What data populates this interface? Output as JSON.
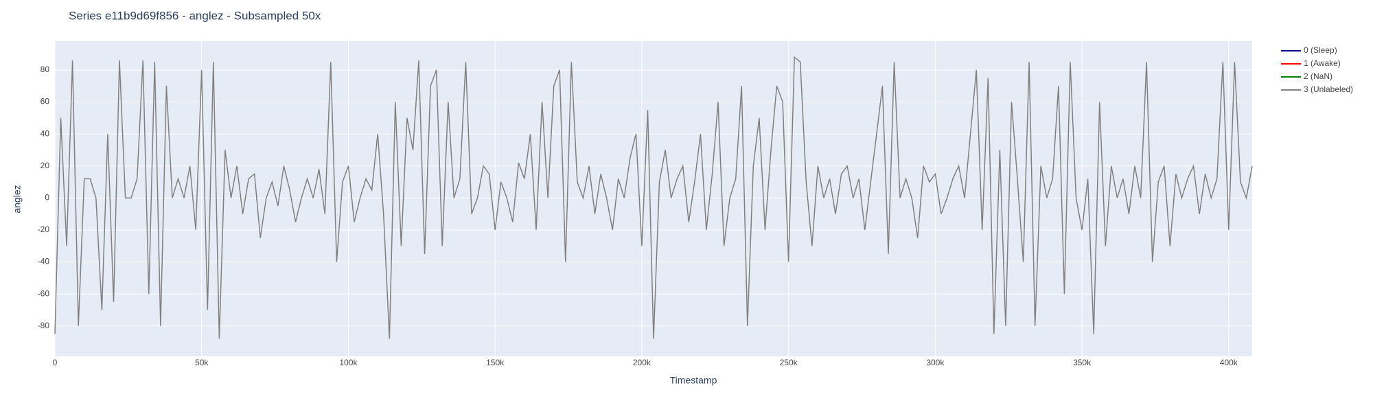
{
  "chart_data": {
    "type": "line",
    "title": "Series e11b9d69f856 - anglez - Subsampled 50x",
    "x_label": "Timestamp",
    "y_label": "anglez",
    "xlim": [
      0,
      408000
    ],
    "ylim": [
      -99,
      98
    ],
    "xticks": [
      0,
      {
        "value": 50000,
        "label": "50k"
      },
      {
        "value": 100000,
        "label": "100k"
      },
      {
        "value": 150000,
        "label": "150k"
      },
      {
        "value": 200000,
        "label": "200k"
      },
      {
        "value": 250000,
        "label": "250k"
      },
      {
        "value": 300000,
        "label": "300k"
      },
      {
        "value": 350000,
        "label": "350k"
      },
      {
        "value": 400000,
        "label": "400k"
      }
    ],
    "yticks": [
      -80,
      -60,
      -40,
      -20,
      0,
      20,
      40,
      60,
      80
    ],
    "grid": true,
    "legend": "right",
    "series": [
      {
        "name": "0 (Sleep)",
        "color": "#00008b",
        "x": [],
        "values": []
      },
      {
        "name": "1 (Awake)",
        "color": "#ff0000",
        "x": [],
        "values": []
      },
      {
        "name": "2 (NaN)",
        "color": "#008000",
        "x": [],
        "values": []
      },
      {
        "name": "3 (Unlabeled)",
        "color": "#808080",
        "x": [
          0,
          2000,
          4000,
          6000,
          8000,
          10000,
          12000,
          14000,
          16000,
          18000,
          20000,
          22000,
          24000,
          26000,
          28000,
          30000,
          32000,
          34000,
          36000,
          38000,
          40000,
          42000,
          44000,
          46000,
          48000,
          50000,
          52000,
          54000,
          56000,
          58000,
          60000,
          62000,
          64000,
          66000,
          68000,
          70000,
          72000,
          74000,
          76000,
          78000,
          80000,
          82000,
          84000,
          86000,
          88000,
          90000,
          92000,
          94000,
          96000,
          98000,
          100000,
          102000,
          104000,
          106000,
          108000,
          110000,
          112000,
          114000,
          116000,
          118000,
          120000,
          122000,
          124000,
          126000,
          128000,
          130000,
          132000,
          134000,
          136000,
          138000,
          140000,
          142000,
          144000,
          146000,
          148000,
          150000,
          152000,
          154000,
          156000,
          158000,
          160000,
          162000,
          164000,
          166000,
          168000,
          170000,
          172000,
          174000,
          176000,
          178000,
          180000,
          182000,
          184000,
          186000,
          188000,
          190000,
          192000,
          194000,
          196000,
          198000,
          200000,
          202000,
          204000,
          206000,
          208000,
          210000,
          212000,
          214000,
          216000,
          218000,
          220000,
          222000,
          224000,
          226000,
          228000,
          230000,
          232000,
          234000,
          236000,
          238000,
          240000,
          242000,
          244000,
          246000,
          248000,
          250000,
          252000,
          254000,
          256000,
          258000,
          260000,
          262000,
          264000,
          266000,
          268000,
          270000,
          272000,
          274000,
          276000,
          278000,
          280000,
          282000,
          284000,
          286000,
          288000,
          290000,
          292000,
          294000,
          296000,
          298000,
          300000,
          302000,
          304000,
          306000,
          308000,
          310000,
          312000,
          314000,
          316000,
          318000,
          320000,
          322000,
          324000,
          326000,
          328000,
          330000,
          332000,
          334000,
          336000,
          338000,
          340000,
          342000,
          344000,
          346000,
          348000,
          350000,
          352000,
          354000,
          356000,
          358000,
          360000,
          362000,
          364000,
          366000,
          368000,
          370000,
          372000,
          374000,
          376000,
          378000,
          380000,
          382000,
          384000,
          386000,
          388000,
          390000,
          392000,
          394000,
          396000,
          398000,
          400000,
          402000,
          404000,
          406000,
          408000
        ],
        "values": [
          -85,
          50,
          -30,
          86,
          -80,
          12,
          12,
          0,
          -70,
          40,
          -65,
          86,
          0,
          0,
          12,
          86,
          -60,
          85,
          -80,
          70,
          0,
          12,
          0,
          20,
          -20,
          80,
          -70,
          85,
          -88,
          30,
          0,
          20,
          -10,
          12,
          15,
          -25,
          0,
          10,
          -5,
          20,
          5,
          -15,
          0,
          12,
          0,
          18,
          -10,
          85,
          -40,
          10,
          20,
          -15,
          0,
          12,
          5,
          40,
          -10,
          -88,
          60,
          -30,
          50,
          30,
          86,
          -35,
          70,
          80,
          -30,
          60,
          0,
          12,
          85,
          -10,
          0,
          20,
          15,
          -20,
          10,
          0,
          -15,
          22,
          12,
          40,
          -20,
          60,
          0,
          70,
          80,
          -40,
          85,
          10,
          0,
          20,
          -10,
          15,
          0,
          -20,
          12,
          0,
          25,
          40,
          -30,
          55,
          -88,
          10,
          30,
          0,
          12,
          20,
          -15,
          10,
          40,
          -20,
          15,
          60,
          -30,
          0,
          12,
          70,
          -80,
          20,
          50,
          -20,
          30,
          70,
          60,
          -40,
          88,
          85,
          10,
          -30,
          20,
          0,
          12,
          -10,
          15,
          20,
          0,
          12,
          -20,
          10,
          40,
          70,
          -35,
          85,
          0,
          12,
          0,
          -25,
          20,
          10,
          15,
          -10,
          0,
          12,
          20,
          0,
          40,
          80,
          -20,
          75,
          -85,
          30,
          -80,
          60,
          12,
          -40,
          85,
          -80,
          20,
          0,
          12,
          70,
          -60,
          85,
          0,
          -20,
          12,
          -85,
          60,
          -30,
          20,
          0,
          12,
          -10,
          20,
          0,
          85,
          -40,
          10,
          20,
          -30,
          15,
          0,
          12,
          20,
          -10,
          15,
          0,
          12,
          85,
          -20,
          85,
          10,
          0,
          20
        ]
      }
    ]
  }
}
